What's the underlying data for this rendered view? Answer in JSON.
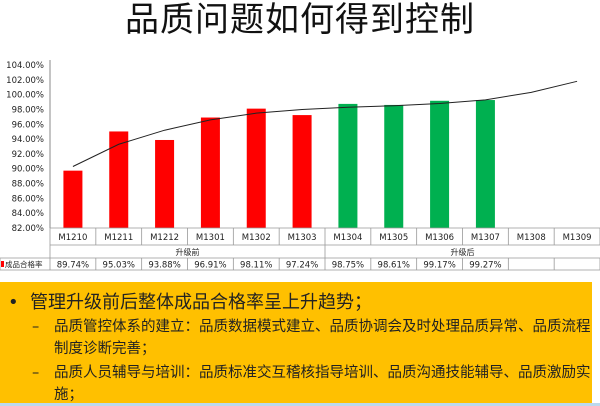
{
  "title": "品质问题如何得到控制",
  "chart_data": {
    "type": "bar",
    "categories": [
      "M1210",
      "M1211",
      "M1212",
      "M1301",
      "M1302",
      "M1303",
      "M1304",
      "M1305",
      "M1306",
      "M1307",
      "M1308",
      "M1309"
    ],
    "groups": [
      {
        "label": "升级前",
        "span": 6
      },
      {
        "label": "升级后",
        "span": 6
      }
    ],
    "series": [
      {
        "name": "成品合格率",
        "values": [
          89.74,
          95.03,
          93.88,
          96.91,
          98.11,
          97.24,
          98.75,
          98.61,
          99.17,
          99.27,
          null,
          null
        ],
        "value_labels": [
          "89.74%",
          "95.03%",
          "93.88%",
          "96.91%",
          "98.11%",
          "97.24%",
          "98.75%",
          "98.61%",
          "99.17%",
          "99.27%",
          "",
          ""
        ]
      }
    ],
    "bar_colors": {
      "before": "#ff0000",
      "after": "#00b050"
    },
    "trendline": {
      "type": "polynomial",
      "values": [
        90.3,
        93.3,
        95.2,
        96.6,
        97.5,
        98.0,
        98.3,
        98.5,
        98.8,
        99.3,
        100.3,
        101.8
      ]
    },
    "ylim": [
      82,
      104
    ],
    "yticks": [
      "82.00%",
      "84.00%",
      "86.00%",
      "88.00%",
      "90.00%",
      "92.00%",
      "94.00%",
      "96.00%",
      "98.00%",
      "100.00%",
      "102.00%",
      "104.00%"
    ],
    "grid": false,
    "legend": "data-table"
  },
  "notes": {
    "bullet": "管理升级前后整体成品合格率呈上升趋势；",
    "subs": [
      "品质管控体系的建立：品质数据模式建立、品质协调会及时处理品质异常、品质流程制度诊断完善；",
      "品质人员辅导与培训：品质标准交互稽核指导培训、品质沟通技能辅导、品质激励实施；"
    ]
  }
}
